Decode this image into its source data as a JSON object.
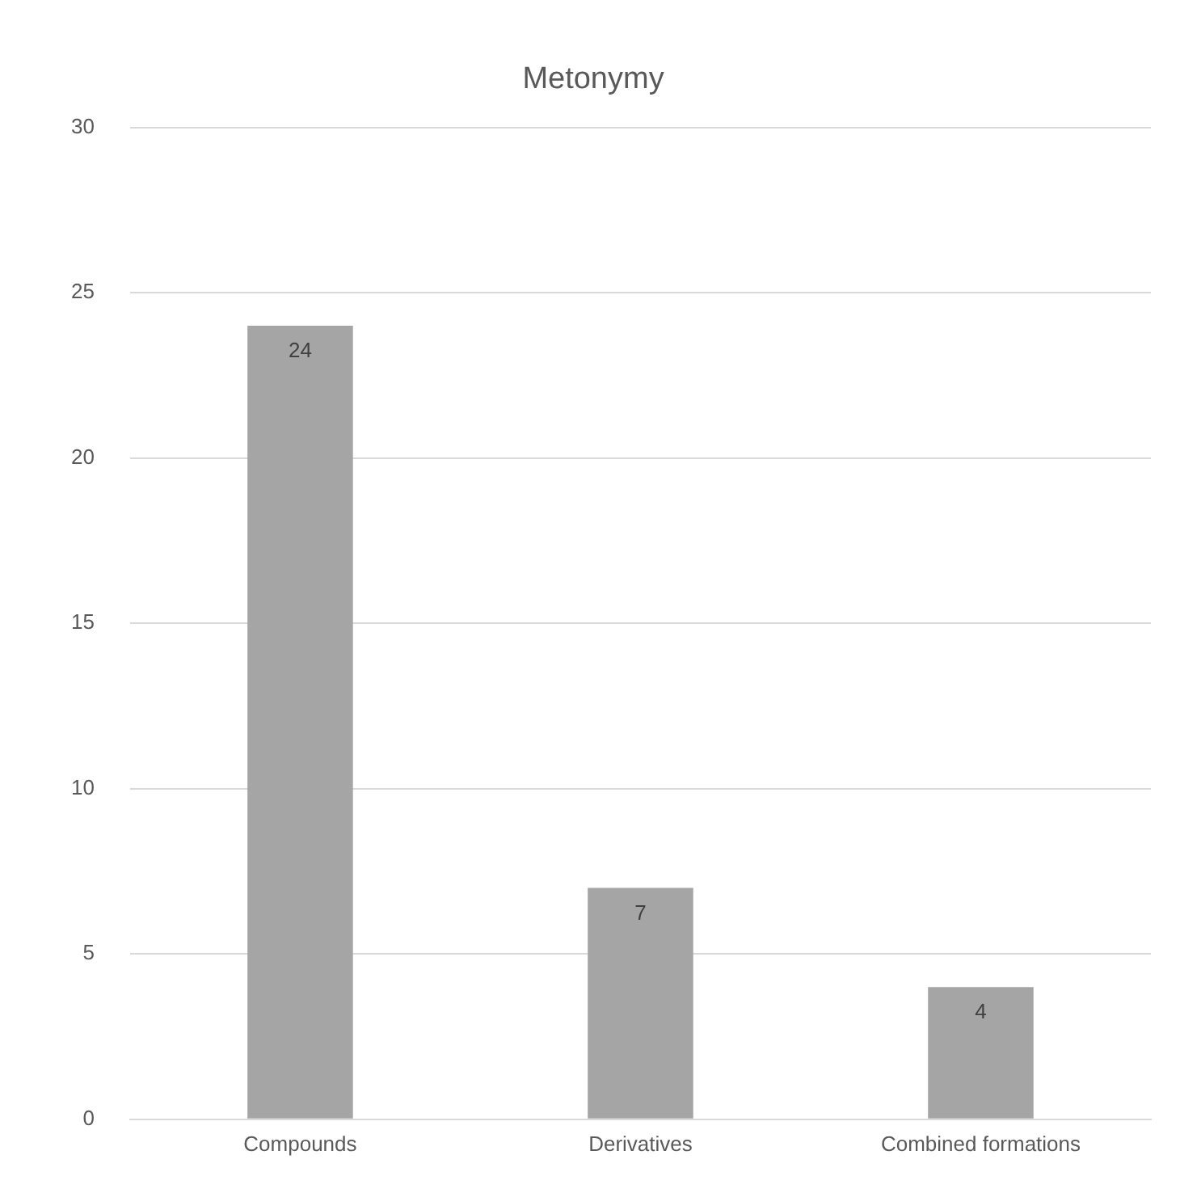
{
  "chart_data": {
    "type": "bar",
    "title": "Metonymy",
    "categories": [
      "Compounds",
      "Derivatives",
      "Combined formations"
    ],
    "values": [
      24,
      7,
      4
    ],
    "color": "#a5a5a5",
    "ylim": [
      0,
      30
    ],
    "yticks": [
      0,
      5,
      10,
      15,
      20,
      25,
      30
    ],
    "grid": "y",
    "data_labels": true
  }
}
